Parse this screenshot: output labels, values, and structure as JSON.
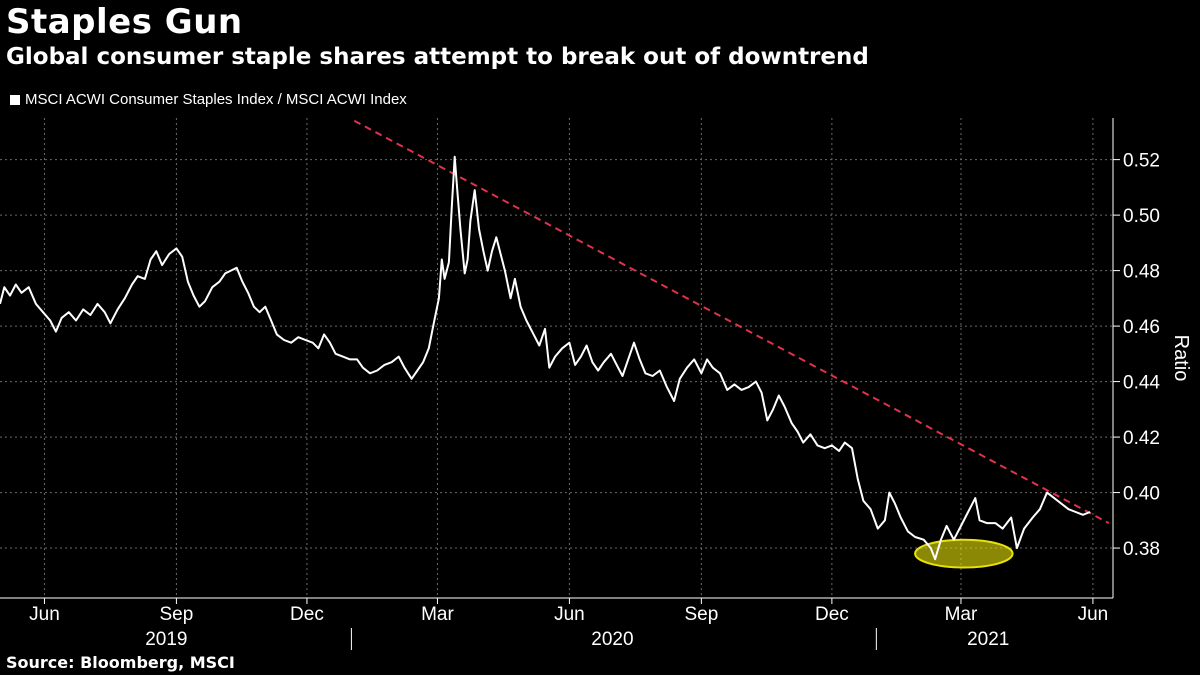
{
  "chart_data": {
    "type": "line",
    "title": "Staples Gun",
    "subtitle": "Global consumer staple shares attempt to break out of downtrend",
    "legend": "MSCI ACWI Consumer Staples Index / MSCI ACWI Index",
    "ylabel": "Ratio",
    "xlabel": "",
    "ylim": [
      0.362,
      0.535
    ],
    "yticks": [
      0.38,
      0.4,
      0.42,
      0.44,
      0.46,
      0.48,
      0.5,
      0.52
    ],
    "ytick_labels": [
      "0.38",
      "0.40",
      "0.42",
      "0.44",
      "0.46",
      "0.48",
      "0.50",
      "0.52"
    ],
    "x_range": [
      "2019-05-01",
      "2021-06-15"
    ],
    "month_ticks": [
      {
        "date": "2019-06-01",
        "label": "Jun"
      },
      {
        "date": "2019-09-01",
        "label": "Sep"
      },
      {
        "date": "2019-12-01",
        "label": "Dec"
      },
      {
        "date": "2020-03-01",
        "label": "Mar"
      },
      {
        "date": "2020-06-01",
        "label": "Jun"
      },
      {
        "date": "2020-09-01",
        "label": "Sep"
      },
      {
        "date": "2020-12-01",
        "label": "Dec"
      },
      {
        "date": "2021-03-01",
        "label": "Mar"
      },
      {
        "date": "2021-06-01",
        "label": "Jun"
      }
    ],
    "year_labels": [
      {
        "label": "2019",
        "center": "2019-08-25"
      },
      {
        "label": "2020",
        "center": "2020-07-01"
      },
      {
        "label": "2021",
        "center": "2021-03-20"
      }
    ],
    "year_separators": [
      "2020-01-01",
      "2021-01-01"
    ],
    "series": [
      {
        "name": "MSCI ACWI Consumer Staples Index / MSCI ACWI Index",
        "color": "#ffffff",
        "points": [
          [
            "2019-05-01",
            0.468
          ],
          [
            "2019-05-04",
            0.474
          ],
          [
            "2019-05-08",
            0.471
          ],
          [
            "2019-05-12",
            0.475
          ],
          [
            "2019-05-16",
            0.472
          ],
          [
            "2019-05-21",
            0.474
          ],
          [
            "2019-05-26",
            0.468
          ],
          [
            "2019-05-31",
            0.465
          ],
          [
            "2019-06-05",
            0.462
          ],
          [
            "2019-06-09",
            0.458
          ],
          [
            "2019-06-13",
            0.463
          ],
          [
            "2019-06-18",
            0.465
          ],
          [
            "2019-06-23",
            0.462
          ],
          [
            "2019-06-28",
            0.466
          ],
          [
            "2019-07-03",
            0.464
          ],
          [
            "2019-07-08",
            0.468
          ],
          [
            "2019-07-13",
            0.465
          ],
          [
            "2019-07-17",
            0.461
          ],
          [
            "2019-07-22",
            0.466
          ],
          [
            "2019-07-27",
            0.47
          ],
          [
            "2019-08-01",
            0.475
          ],
          [
            "2019-08-05",
            0.478
          ],
          [
            "2019-08-10",
            0.477
          ],
          [
            "2019-08-14",
            0.484
          ],
          [
            "2019-08-18",
            0.487
          ],
          [
            "2019-08-22",
            0.482
          ],
          [
            "2019-08-27",
            0.486
          ],
          [
            "2019-09-01",
            0.488
          ],
          [
            "2019-09-05",
            0.485
          ],
          [
            "2019-09-09",
            0.476
          ],
          [
            "2019-09-13",
            0.471
          ],
          [
            "2019-09-17",
            0.467
          ],
          [
            "2019-09-21",
            0.469
          ],
          [
            "2019-09-26",
            0.474
          ],
          [
            "2019-10-01",
            0.476
          ],
          [
            "2019-10-05",
            0.479
          ],
          [
            "2019-10-09",
            0.48
          ],
          [
            "2019-10-13",
            0.481
          ],
          [
            "2019-10-17",
            0.476
          ],
          [
            "2019-10-21",
            0.472
          ],
          [
            "2019-10-25",
            0.467
          ],
          [
            "2019-10-29",
            0.465
          ],
          [
            "2019-11-02",
            0.467
          ],
          [
            "2019-11-06",
            0.462
          ],
          [
            "2019-11-10",
            0.457
          ],
          [
            "2019-11-15",
            0.455
          ],
          [
            "2019-11-20",
            0.454
          ],
          [
            "2019-11-25",
            0.456
          ],
          [
            "2019-11-30",
            0.455
          ],
          [
            "2019-12-05",
            0.454
          ],
          [
            "2019-12-09",
            0.452
          ],
          [
            "2019-12-13",
            0.457
          ],
          [
            "2019-12-17",
            0.454
          ],
          [
            "2019-12-21",
            0.45
          ],
          [
            "2019-12-26",
            0.449
          ],
          [
            "2019-12-31",
            0.448
          ],
          [
            "2020-01-05",
            0.448
          ],
          [
            "2020-01-09",
            0.445
          ],
          [
            "2020-01-14",
            0.443
          ],
          [
            "2020-01-19",
            0.444
          ],
          [
            "2020-01-24",
            0.446
          ],
          [
            "2020-01-29",
            0.447
          ],
          [
            "2020-02-03",
            0.449
          ],
          [
            "2020-02-07",
            0.445
          ],
          [
            "2020-02-12",
            0.441
          ],
          [
            "2020-02-16",
            0.444
          ],
          [
            "2020-02-20",
            0.447
          ],
          [
            "2020-02-24",
            0.452
          ],
          [
            "2020-02-27",
            0.46
          ],
          [
            "2020-03-02",
            0.47
          ],
          [
            "2020-03-04",
            0.484
          ],
          [
            "2020-03-06",
            0.477
          ],
          [
            "2020-03-09",
            0.483
          ],
          [
            "2020-03-11",
            0.503
          ],
          [
            "2020-03-13",
            0.521
          ],
          [
            "2020-03-15",
            0.508
          ],
          [
            "2020-03-17",
            0.495
          ],
          [
            "2020-03-20",
            0.479
          ],
          [
            "2020-03-22",
            0.484
          ],
          [
            "2020-03-24",
            0.498
          ],
          [
            "2020-03-27",
            0.509
          ],
          [
            "2020-03-30",
            0.495
          ],
          [
            "2020-04-02",
            0.487
          ],
          [
            "2020-04-05",
            0.48
          ],
          [
            "2020-04-08",
            0.487
          ],
          [
            "2020-04-11",
            0.492
          ],
          [
            "2020-04-14",
            0.486
          ],
          [
            "2020-04-17",
            0.48
          ],
          [
            "2020-04-21",
            0.47
          ],
          [
            "2020-04-24",
            0.477
          ],
          [
            "2020-04-28",
            0.467
          ],
          [
            "2020-05-02",
            0.462
          ],
          [
            "2020-05-07",
            0.457
          ],
          [
            "2020-05-11",
            0.453
          ],
          [
            "2020-05-15",
            0.459
          ],
          [
            "2020-05-18",
            0.445
          ],
          [
            "2020-05-22",
            0.449
          ],
          [
            "2020-05-27",
            0.452
          ],
          [
            "2020-06-01",
            0.454
          ],
          [
            "2020-06-05",
            0.446
          ],
          [
            "2020-06-09",
            0.449
          ],
          [
            "2020-06-13",
            0.453
          ],
          [
            "2020-06-17",
            0.447
          ],
          [
            "2020-06-21",
            0.444
          ],
          [
            "2020-06-25",
            0.447
          ],
          [
            "2020-06-30",
            0.45
          ],
          [
            "2020-07-04",
            0.446
          ],
          [
            "2020-07-08",
            0.442
          ],
          [
            "2020-07-12",
            0.448
          ],
          [
            "2020-07-16",
            0.454
          ],
          [
            "2020-07-20",
            0.448
          ],
          [
            "2020-07-24",
            0.443
          ],
          [
            "2020-07-29",
            0.442
          ],
          [
            "2020-08-03",
            0.444
          ],
          [
            "2020-08-08",
            0.438
          ],
          [
            "2020-08-13",
            0.433
          ],
          [
            "2020-08-17",
            0.441
          ],
          [
            "2020-08-22",
            0.445
          ],
          [
            "2020-08-27",
            0.448
          ],
          [
            "2020-09-01",
            0.443
          ],
          [
            "2020-09-05",
            0.448
          ],
          [
            "2020-09-09",
            0.445
          ],
          [
            "2020-09-14",
            0.443
          ],
          [
            "2020-09-19",
            0.437
          ],
          [
            "2020-09-24",
            0.439
          ],
          [
            "2020-09-29",
            0.437
          ],
          [
            "2020-10-04",
            0.438
          ],
          [
            "2020-10-09",
            0.44
          ],
          [
            "2020-10-13",
            0.436
          ],
          [
            "2020-10-17",
            0.426
          ],
          [
            "2020-10-21",
            0.43
          ],
          [
            "2020-10-25",
            0.435
          ],
          [
            "2020-10-29",
            0.431
          ],
          [
            "2020-11-03",
            0.425
          ],
          [
            "2020-11-07",
            0.422
          ],
          [
            "2020-11-11",
            0.418
          ],
          [
            "2020-11-16",
            0.421
          ],
          [
            "2020-11-21",
            0.417
          ],
          [
            "2020-11-26",
            0.416
          ],
          [
            "2020-12-01",
            0.417
          ],
          [
            "2020-12-06",
            0.415
          ],
          [
            "2020-12-10",
            0.418
          ],
          [
            "2020-12-15",
            0.416
          ],
          [
            "2020-12-19",
            0.405
          ],
          [
            "2020-12-23",
            0.397
          ],
          [
            "2020-12-28",
            0.394
          ],
          [
            "2021-01-02",
            0.387
          ],
          [
            "2021-01-07",
            0.39
          ],
          [
            "2021-01-10",
            0.4
          ],
          [
            "2021-01-14",
            0.396
          ],
          [
            "2021-01-18",
            0.391
          ],
          [
            "2021-01-23",
            0.386
          ],
          [
            "2021-01-28",
            0.384
          ],
          [
            "2021-02-03",
            0.383
          ],
          [
            "2021-02-08",
            0.38
          ],
          [
            "2021-02-11",
            0.376
          ],
          [
            "2021-02-15",
            0.383
          ],
          [
            "2021-02-19",
            0.388
          ],
          [
            "2021-02-24",
            0.383
          ],
          [
            "2021-03-01",
            0.388
          ],
          [
            "2021-03-06",
            0.393
          ],
          [
            "2021-03-11",
            0.398
          ],
          [
            "2021-03-14",
            0.39
          ],
          [
            "2021-03-19",
            0.389
          ],
          [
            "2021-03-25",
            0.389
          ],
          [
            "2021-03-30",
            0.387
          ],
          [
            "2021-04-05",
            0.391
          ],
          [
            "2021-04-09",
            0.38
          ],
          [
            "2021-04-14",
            0.387
          ],
          [
            "2021-04-20",
            0.391
          ],
          [
            "2021-04-25",
            0.394
          ],
          [
            "2021-04-30",
            0.4
          ],
          [
            "2021-05-05",
            0.398
          ],
          [
            "2021-05-10",
            0.396
          ],
          [
            "2021-05-15",
            0.394
          ],
          [
            "2021-05-20",
            0.393
          ],
          [
            "2021-05-25",
            0.392
          ],
          [
            "2021-05-30",
            0.393
          ]
        ]
      }
    ],
    "annotations": [
      {
        "type": "trendline",
        "style": "dashed",
        "color": "#e0334a",
        "from": [
          "2020-01-03",
          0.534
        ],
        "to": [
          "2021-06-12",
          0.389
        ]
      },
      {
        "type": "ellipse",
        "color": "#e8e20a",
        "center": [
          "2021-03-03",
          0.378
        ],
        "x_span_days": 68,
        "y_span": 0.01
      }
    ]
  },
  "source": "Source: Bloomberg, MSCI"
}
